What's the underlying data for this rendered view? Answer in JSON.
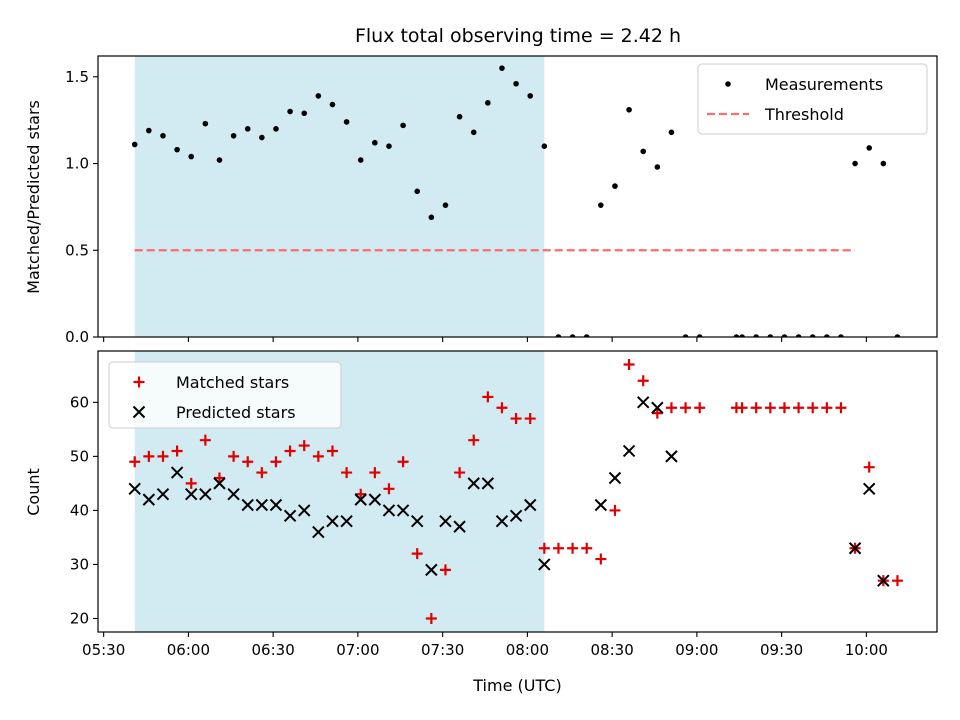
{
  "title": "Flux total observing time = 2.42 h",
  "colors": {
    "band": "#add8e6",
    "threshold": "#ff6b6b",
    "matched": "#e00000",
    "predicted": "#000000",
    "measurement": "#000000"
  },
  "chart_data": [
    {
      "type": "scatter",
      "panel": "top",
      "title": "Flux total observing time = 2.42 h",
      "ylabel": "Matched/Predicted stars",
      "xlabel": "",
      "x_unit": "time of day (UTC)",
      "xlim": [
        "05:28",
        "10:25"
      ],
      "ylim": [
        0,
        1.62
      ],
      "yticks": [
        0.0,
        0.5,
        1.0,
        1.5
      ],
      "ytick_labels": [
        "0.0",
        "0.5",
        "1.0",
        "1.5"
      ],
      "shaded_span": [
        "05:41",
        "08:06"
      ],
      "legend": {
        "placement": "top-right",
        "entries": [
          "Measurements",
          "Threshold"
        ]
      },
      "threshold": {
        "name": "Threshold",
        "value": 0.5,
        "x_range": [
          "05:41",
          "09:56"
        ]
      },
      "series": [
        {
          "name": "Measurements",
          "marker": "dot",
          "points": [
            [
              "05:41",
              1.11
            ],
            [
              "05:46",
              1.19
            ],
            [
              "05:51",
              1.16
            ],
            [
              "05:56",
              1.08
            ],
            [
              "06:01",
              1.04
            ],
            [
              "06:06",
              1.23
            ],
            [
              "06:11",
              1.02
            ],
            [
              "06:16",
              1.16
            ],
            [
              "06:21",
              1.2
            ],
            [
              "06:26",
              1.15
            ],
            [
              "06:31",
              1.2
            ],
            [
              "06:36",
              1.3
            ],
            [
              "06:41",
              1.29
            ],
            [
              "06:46",
              1.39
            ],
            [
              "06:51",
              1.34
            ],
            [
              "06:56",
              1.24
            ],
            [
              "07:01",
              1.02
            ],
            [
              "07:06",
              1.12
            ],
            [
              "07:11",
              1.1
            ],
            [
              "07:16",
              1.22
            ],
            [
              "07:21",
              0.84
            ],
            [
              "07:26",
              0.69
            ],
            [
              "07:31",
              0.76
            ],
            [
              "07:36",
              1.27
            ],
            [
              "07:41",
              1.18
            ],
            [
              "07:46",
              1.35
            ],
            [
              "07:51",
              1.55
            ],
            [
              "07:56",
              1.46
            ],
            [
              "08:01",
              1.39
            ],
            [
              "08:06",
              1.1
            ],
            [
              "08:11",
              0
            ],
            [
              "08:16",
              0
            ],
            [
              "08:21",
              0
            ],
            [
              "08:26",
              0.76
            ],
            [
              "08:31",
              0.87
            ],
            [
              "08:36",
              1.31
            ],
            [
              "08:41",
              1.07
            ],
            [
              "08:46",
              0.98
            ],
            [
              "08:51",
              1.18
            ],
            [
              "08:56",
              0
            ],
            [
              "09:01",
              0
            ],
            [
              "09:14",
              0
            ],
            [
              "09:16",
              0
            ],
            [
              "09:21",
              0
            ],
            [
              "09:26",
              0
            ],
            [
              "09:31",
              0
            ],
            [
              "09:36",
              0
            ],
            [
              "09:41",
              0
            ],
            [
              "09:46",
              0
            ],
            [
              "09:51",
              0
            ],
            [
              "09:56",
              1.0
            ],
            [
              "10:01",
              1.09
            ],
            [
              "10:06",
              1.0
            ],
            [
              "10:11",
              0
            ]
          ]
        }
      ]
    },
    {
      "type": "scatter",
      "panel": "bottom",
      "ylabel": "Count",
      "xlabel": "Time (UTC)",
      "x_unit": "time of day (UTC)",
      "xlim": [
        "05:28",
        "10:25"
      ],
      "ylim": [
        17.5,
        69.5
      ],
      "yticks": [
        20,
        30,
        40,
        50,
        60
      ],
      "ytick_labels": [
        "20",
        "30",
        "40",
        "50",
        "60"
      ],
      "xticks": [
        "05:30",
        "06:00",
        "06:30",
        "07:00",
        "07:30",
        "08:00",
        "08:30",
        "09:00",
        "09:30",
        "10:00"
      ],
      "shaded_span": [
        "05:41",
        "08:06"
      ],
      "legend": {
        "placement": "top-left",
        "entries": [
          "Matched stars",
          "Predicted stars"
        ]
      },
      "series": [
        {
          "name": "Matched stars",
          "marker": "plus",
          "points": [
            [
              "05:41",
              49
            ],
            [
              "05:46",
              50
            ],
            [
              "05:51",
              50
            ],
            [
              "05:56",
              51
            ],
            [
              "06:01",
              45
            ],
            [
              "06:06",
              53
            ],
            [
              "06:11",
              46
            ],
            [
              "06:16",
              50
            ],
            [
              "06:21",
              49
            ],
            [
              "06:26",
              47
            ],
            [
              "06:31",
              49
            ],
            [
              "06:36",
              51
            ],
            [
              "06:41",
              52
            ],
            [
              "06:46",
              50
            ],
            [
              "06:51",
              51
            ],
            [
              "06:56",
              47
            ],
            [
              "07:01",
              43
            ],
            [
              "07:06",
              47
            ],
            [
              "07:11",
              44
            ],
            [
              "07:16",
              49
            ],
            [
              "07:21",
              32
            ],
            [
              "07:26",
              20
            ],
            [
              "07:31",
              29
            ],
            [
              "07:36",
              47
            ],
            [
              "07:41",
              53
            ],
            [
              "07:46",
              61
            ],
            [
              "07:51",
              59
            ],
            [
              "07:56",
              57
            ],
            [
              "08:01",
              57
            ],
            [
              "08:06",
              33
            ],
            [
              "08:11",
              33
            ],
            [
              "08:16",
              33
            ],
            [
              "08:21",
              33
            ],
            [
              "08:26",
              31
            ],
            [
              "08:31",
              40
            ],
            [
              "08:36",
              67
            ],
            [
              "08:41",
              64
            ],
            [
              "08:46",
              58
            ],
            [
              "08:51",
              59
            ],
            [
              "08:56",
              59
            ],
            [
              "09:01",
              59
            ],
            [
              "09:14",
              59
            ],
            [
              "09:16",
              59
            ],
            [
              "09:21",
              59
            ],
            [
              "09:26",
              59
            ],
            [
              "09:31",
              59
            ],
            [
              "09:36",
              59
            ],
            [
              "09:41",
              59
            ],
            [
              "09:46",
              59
            ],
            [
              "09:51",
              59
            ],
            [
              "09:56",
              33
            ],
            [
              "10:01",
              48
            ],
            [
              "10:06",
              27
            ],
            [
              "10:11",
              27
            ]
          ]
        },
        {
          "name": "Predicted stars",
          "marker": "x",
          "points": [
            [
              "05:41",
              44
            ],
            [
              "05:46",
              42
            ],
            [
              "05:51",
              43
            ],
            [
              "05:56",
              47
            ],
            [
              "06:01",
              43
            ],
            [
              "06:06",
              43
            ],
            [
              "06:11",
              45
            ],
            [
              "06:16",
              43
            ],
            [
              "06:21",
              41
            ],
            [
              "06:26",
              41
            ],
            [
              "06:31",
              41
            ],
            [
              "06:36",
              39
            ],
            [
              "06:41",
              40
            ],
            [
              "06:46",
              36
            ],
            [
              "06:51",
              38
            ],
            [
              "06:56",
              38
            ],
            [
              "07:01",
              42
            ],
            [
              "07:06",
              42
            ],
            [
              "07:11",
              40
            ],
            [
              "07:16",
              40
            ],
            [
              "07:21",
              38
            ],
            [
              "07:26",
              29
            ],
            [
              "07:31",
              38
            ],
            [
              "07:36",
              37
            ],
            [
              "07:41",
              45
            ],
            [
              "07:46",
              45
            ],
            [
              "07:51",
              38
            ],
            [
              "07:56",
              39
            ],
            [
              "08:01",
              41
            ],
            [
              "08:06",
              30
            ],
            [
              "08:26",
              41
            ],
            [
              "08:31",
              46
            ],
            [
              "08:36",
              51
            ],
            [
              "08:41",
              60
            ],
            [
              "08:46",
              59
            ],
            [
              "08:51",
              50
            ],
            [
              "09:56",
              33
            ],
            [
              "10:01",
              44
            ],
            [
              "10:06",
              27
            ]
          ]
        }
      ]
    }
  ]
}
